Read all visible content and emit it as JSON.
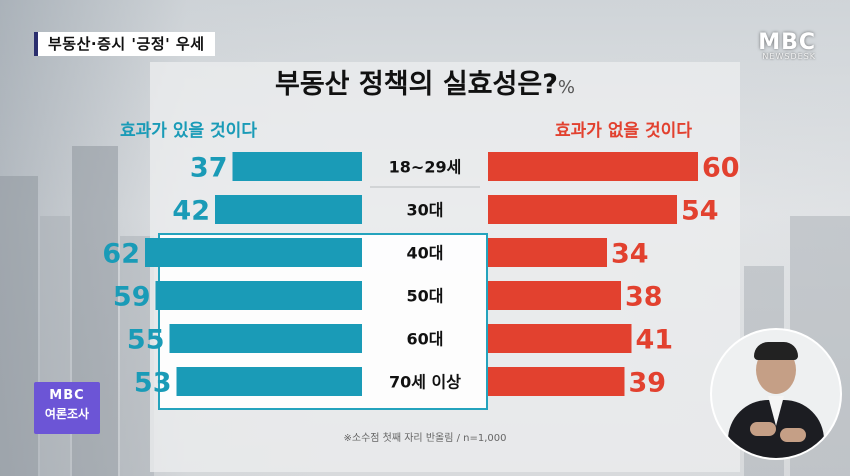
{
  "headline_tag": "부동산·증시 '긍정' 우세",
  "broadcaster": {
    "logo": "MBC",
    "sub": "NEWSDESK"
  },
  "title": "부동산 정책의 실효성은?",
  "title_unit": "%",
  "labels": {
    "left": "효과가 있을 것이다",
    "right": "효과가 없을 것이다"
  },
  "footnote": "※소수점 첫째 자리 반올림 / n=1,000",
  "poll_badge": {
    "brand": "MBC",
    "text": "여론조사"
  },
  "colors": {
    "effective": "#1a9bb7",
    "not_effective": "#e2412f",
    "highlight_border": "#24a3bd",
    "badge": "#6c55d6"
  },
  "chart_data": {
    "type": "bar",
    "orientation": "horizontal-diverging",
    "title": "부동산 정책의 실효성은?",
    "unit": "%",
    "categories": [
      "18~29세",
      "30대",
      "40대",
      "50대",
      "60대",
      "70세 이상"
    ],
    "series": [
      {
        "name": "효과가 있을 것이다",
        "values": [
          37,
          42,
          62,
          59,
          55,
          53
        ]
      },
      {
        "name": "효과가 없을 것이다",
        "values": [
          60,
          54,
          34,
          38,
          41,
          39
        ]
      }
    ],
    "highlighted_categories": [
      "40대",
      "50대",
      "60대",
      "70세 이상"
    ]
  }
}
